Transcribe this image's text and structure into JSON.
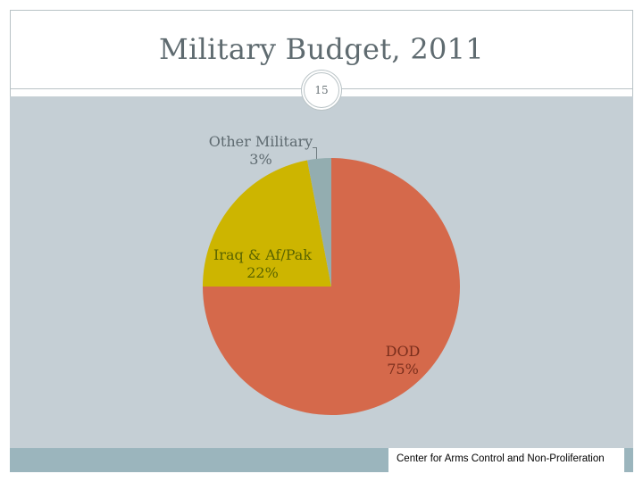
{
  "slide": {
    "title": "Military Budget, 2011",
    "number": "15",
    "footer": "Center for Arms Control and Non-Proliferation"
  },
  "chart_data": {
    "type": "pie",
    "title": "Military Budget, 2011",
    "slices": [
      {
        "name": "DOD",
        "value": 75,
        "label": "75%",
        "color": "#d5694b"
      },
      {
        "name": "Iraq & Af/Pak",
        "value": 22,
        "label": "22%",
        "color": "#cdb500"
      },
      {
        "name": "Other Military",
        "value": 3,
        "label": "3%",
        "color": "#93adb0"
      }
    ],
    "start_angle_deg": 0,
    "direction": "clockwise",
    "legend": "none"
  }
}
